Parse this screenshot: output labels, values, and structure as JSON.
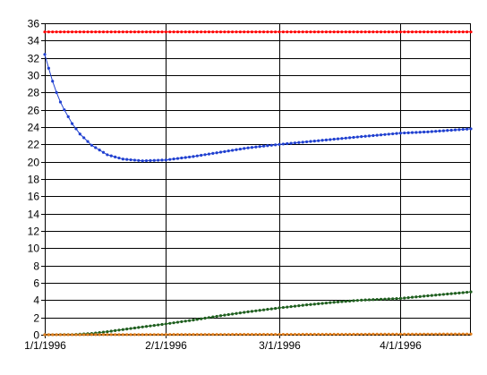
{
  "chart_data": {
    "type": "line",
    "title": "",
    "xlabel": "",
    "ylabel": "",
    "grid": true,
    "legend": "none",
    "y_axis": {
      "min": 0,
      "max": 36,
      "ticks": [
        "0",
        "2",
        "4",
        "6",
        "8",
        "10",
        "12",
        "14",
        "16",
        "18",
        "20",
        "22",
        "24",
        "26",
        "28",
        "30",
        "32",
        "34",
        "36"
      ]
    },
    "x_axis": {
      "start": "1996-01-01",
      "end": "1996-04-19",
      "ticks": [
        {
          "date": "1996-01-01",
          "label": "1/1/1996"
        },
        {
          "date": "1996-02-01",
          "label": "2/1/1996"
        },
        {
          "date": "1996-03-01",
          "label": "3/1/1996"
        },
        {
          "date": "1996-04-01",
          "label": "4/1/1996"
        }
      ]
    },
    "series": [
      {
        "color": "#ff0000",
        "x": [
          "1996-01-01",
          "1996-04-19"
        ],
        "y": [
          35,
          35
        ]
      },
      {
        "color": "#2040d0",
        "x": [
          "1996-01-01",
          "1996-01-02",
          "1996-01-03",
          "1996-01-04",
          "1996-01-05",
          "1996-01-06",
          "1996-01-08",
          "1996-01-10",
          "1996-01-13",
          "1996-01-17",
          "1996-01-21",
          "1996-01-26",
          "1996-02-01",
          "1996-02-08",
          "1996-02-15",
          "1996-02-22",
          "1996-03-01",
          "1996-03-08",
          "1996-03-15",
          "1996-03-22",
          "1996-04-01",
          "1996-04-08",
          "1996-04-19"
        ],
        "y": [
          32.4,
          30.8,
          29.3,
          28.0,
          26.9,
          26.0,
          24.4,
          23.2,
          21.9,
          20.8,
          20.3,
          20.1,
          20.2,
          20.6,
          21.1,
          21.6,
          22.0,
          22.3,
          22.6,
          22.9,
          23.3,
          23.45,
          23.8
        ]
      },
      {
        "color": "#1f5f1f",
        "x": [
          "1996-01-01",
          "1996-01-08",
          "1996-01-13",
          "1996-01-17",
          "1996-01-21",
          "1996-01-26",
          "1996-02-01",
          "1996-02-08",
          "1996-02-15",
          "1996-02-22",
          "1996-03-01",
          "1996-03-08",
          "1996-03-15",
          "1996-03-22",
          "1996-04-01",
          "1996-04-08",
          "1996-04-19"
        ],
        "y": [
          0,
          0.02,
          0.15,
          0.35,
          0.6,
          0.9,
          1.25,
          1.7,
          2.2,
          2.65,
          3.1,
          3.45,
          3.75,
          4.0,
          4.2,
          4.5,
          4.95
        ]
      },
      {
        "color": "#e08020",
        "x": [
          "1996-01-01",
          "1996-04-19"
        ],
        "y": [
          0,
          0.08
        ]
      }
    ]
  }
}
